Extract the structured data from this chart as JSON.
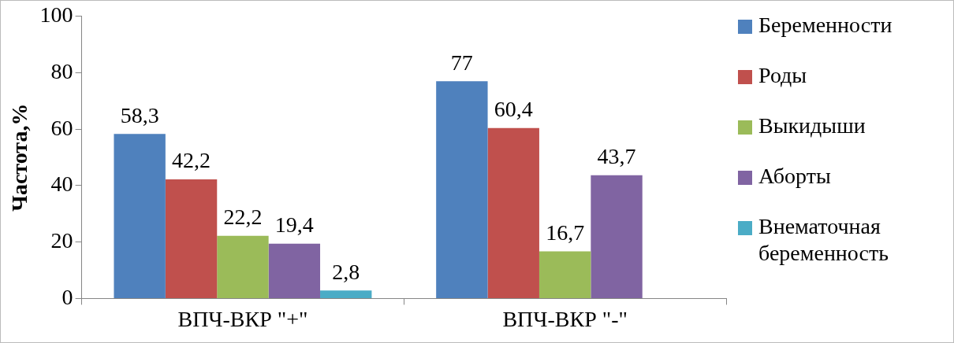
{
  "chart_data": {
    "type": "bar",
    "ylabel": "Частота,%",
    "categories": [
      "ВПЧ-ВКР \"+\"",
      "ВПЧ-ВКР \"-\""
    ],
    "ylim": [
      0,
      100
    ],
    "yticks": [
      0,
      20,
      40,
      60,
      80,
      100
    ],
    "legend": "right",
    "series": [
      {
        "name": "Беременности",
        "color": "#4f81bd",
        "values": [
          58.3,
          77
        ],
        "value_labels": [
          "58,3",
          "77"
        ]
      },
      {
        "name": "Роды",
        "color": "#c0504d",
        "values": [
          42.2,
          60.4
        ],
        "value_labels": [
          "42,2",
          "60,4"
        ]
      },
      {
        "name": "Выкидыши",
        "color": "#9bbb59",
        "values": [
          22.2,
          16.7
        ],
        "value_labels": [
          "22,2",
          "16,7"
        ]
      },
      {
        "name": "Аборты",
        "color": "#8064a2",
        "values": [
          19.4,
          43.7
        ],
        "value_labels": [
          "19,4",
          "43,7"
        ]
      },
      {
        "name": "Внематочная беременность",
        "color": "#4bacc6",
        "values": [
          2.8,
          null
        ],
        "value_labels": [
          "2,8",
          null
        ]
      }
    ]
  }
}
